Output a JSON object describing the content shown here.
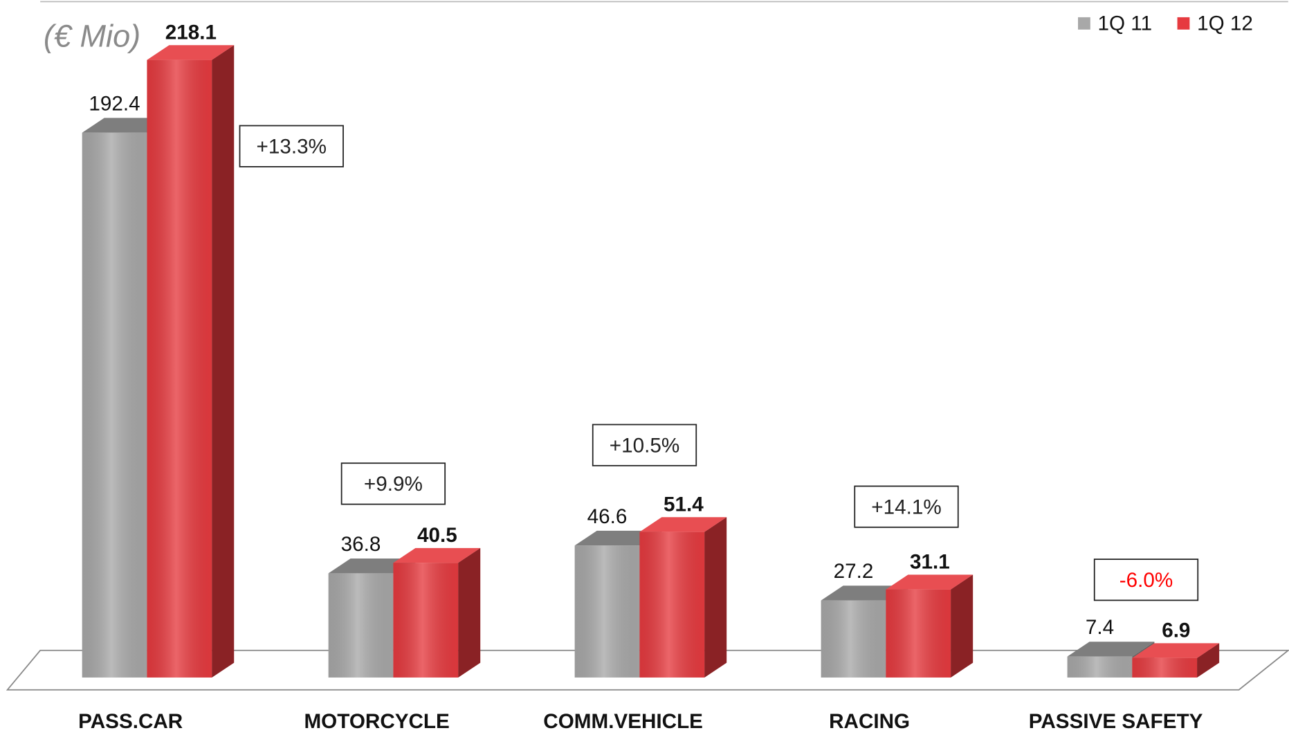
{
  "chart_data": {
    "type": "bar3d",
    "unit_label": "(€ Mio)",
    "categories": [
      "PASS.CAR",
      "MOTORCYCLE",
      "COMM.VEHICLE",
      "RACING",
      "PASSIVE SAFETY"
    ],
    "series": [
      {
        "name": "1Q 11",
        "color": "#a8a8a8",
        "values": [
          192.4,
          36.8,
          46.6,
          27.2,
          7.4
        ]
      },
      {
        "name": "1Q 12",
        "color": "#e63a3f",
        "values": [
          218.1,
          40.5,
          51.4,
          31.1,
          6.9
        ]
      }
    ],
    "annotations": [
      {
        "text": "+13.3%",
        "color": "#222222"
      },
      {
        "text": "+9.9%",
        "color": "#222222"
      },
      {
        "text": "+10.5%",
        "color": "#222222"
      },
      {
        "text": "+14.1%",
        "color": "#222222"
      },
      {
        "text": "-6.0%",
        "color": "#ff0000"
      }
    ],
    "legend": "top-right"
  }
}
